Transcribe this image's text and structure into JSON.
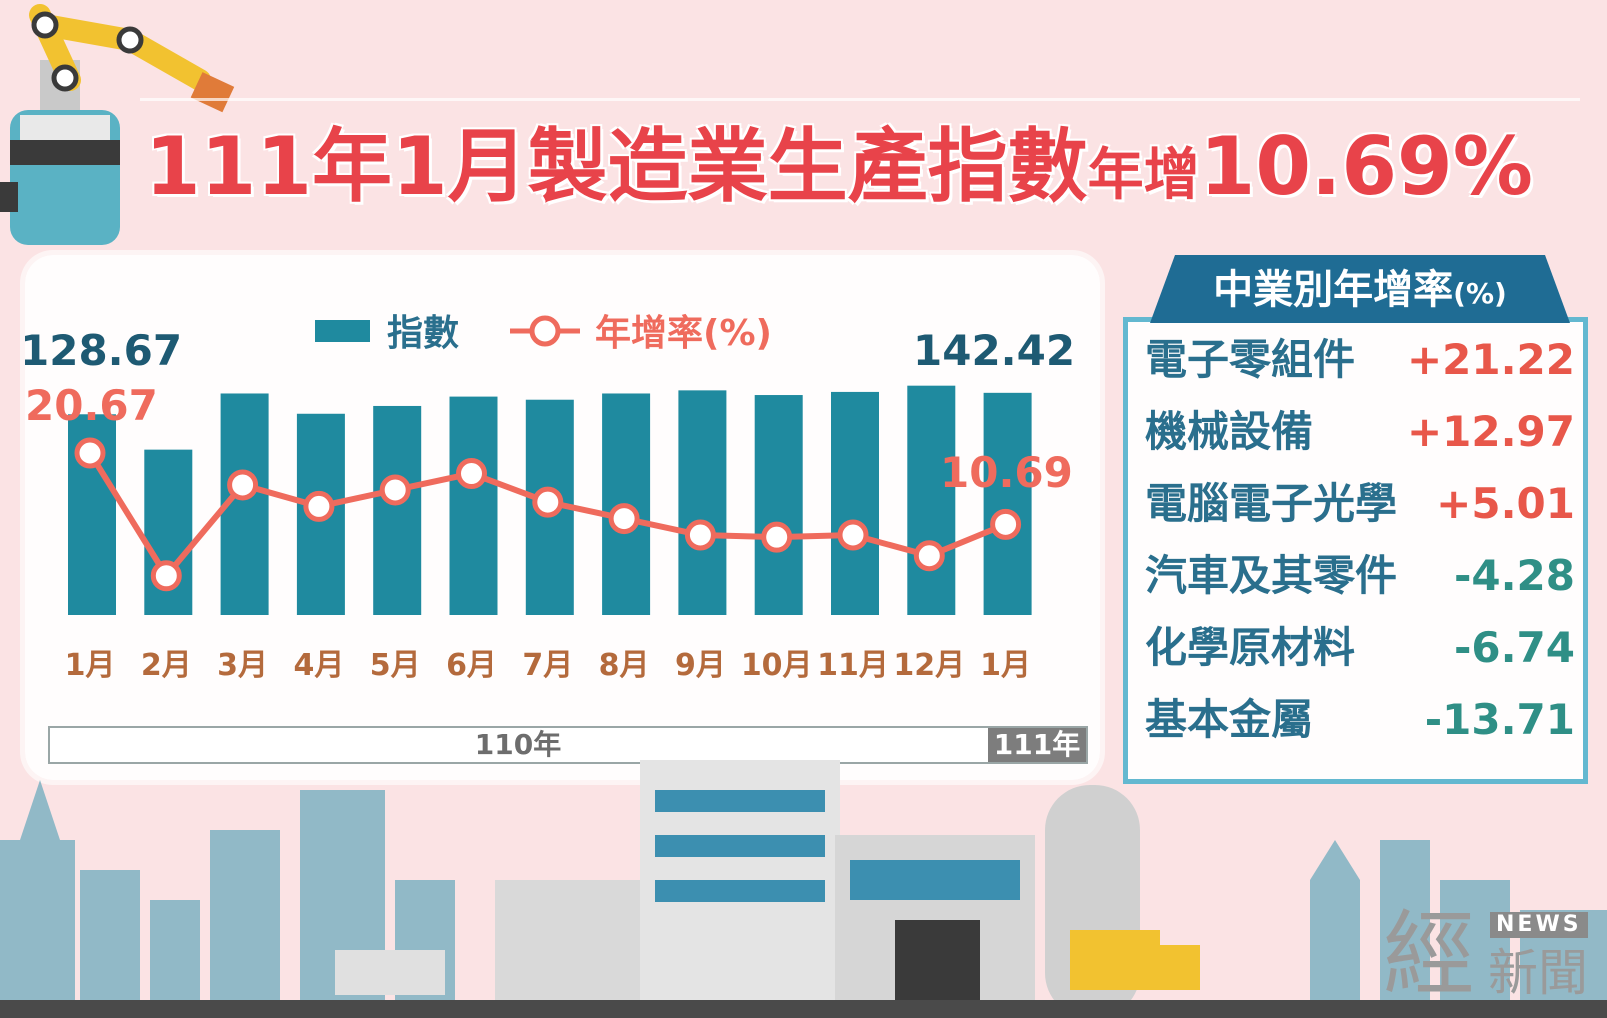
{
  "title": {
    "part1": "111年",
    "part2": "1月",
    "part3": "製造業生產指數",
    "part4": "年增",
    "part5": "10.69%"
  },
  "legend": {
    "index_label": "指數",
    "growth_label": "年增率(%)"
  },
  "chart_annotations": {
    "first_index": "128.67",
    "first_growth": "20.67",
    "last_index": "142.42",
    "last_growth": "10.69"
  },
  "years": {
    "y110": "110年",
    "y111": "111年"
  },
  "chart_data": {
    "type": "bar",
    "categories": [
      "1月",
      "2月",
      "3月",
      "4月",
      "5月",
      "6月",
      "7月",
      "8月",
      "9月",
      "10月",
      "11月",
      "12月",
      "1月"
    ],
    "series": [
      {
        "name": "指數",
        "type": "bar",
        "values": [
          128.67,
          106,
          142,
          129,
          134,
          140,
          138,
          142,
          144,
          141,
          143,
          147,
          142.42
        ]
      },
      {
        "name": "年增率(%)",
        "type": "line",
        "values": [
          20.67,
          3.5,
          16.2,
          13.2,
          15.5,
          17.8,
          13.8,
          11.5,
          9.2,
          8.9,
          9.2,
          6.3,
          10.69
        ]
      }
    ],
    "colors": {
      "bar": "#1f8a9f",
      "line": "#ef6b5d"
    }
  },
  "industry": {
    "header": "中業別年增率",
    "unit": "(%)",
    "rows": [
      {
        "name": "電子零組件",
        "value": "+21.22",
        "color": "#e8574a"
      },
      {
        "name": "機械設備",
        "value": "+12.97",
        "color": "#e8574a"
      },
      {
        "name": "電腦電子光學",
        "value": "+5.01",
        "color": "#e8574a"
      },
      {
        "name": "汽車及其零件",
        "value": "-4.28",
        "color": "#2f8f86"
      },
      {
        "name": "化學原材料",
        "value": "-6.74",
        "color": "#2f8f86"
      },
      {
        "name": "基本金屬",
        "value": "-13.71",
        "color": "#2f8f86"
      }
    ]
  },
  "logo": {
    "news": "NEWS",
    "jing": "經",
    "xinwen": "新聞"
  }
}
